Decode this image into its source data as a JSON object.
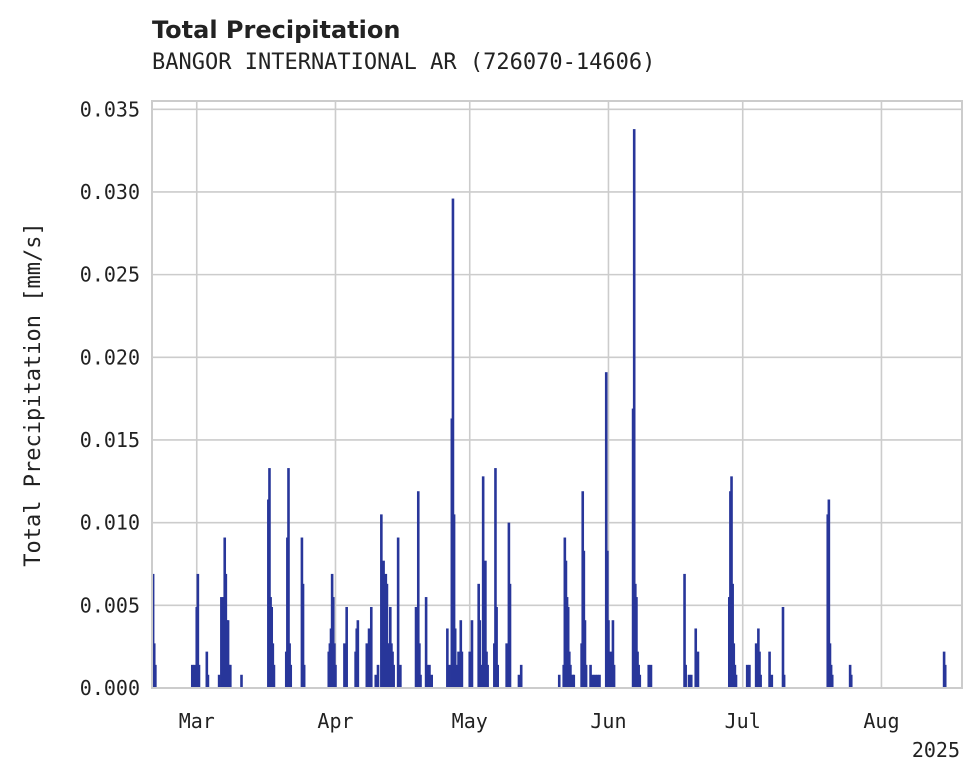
{
  "title": "Total Precipitation",
  "subtitle": "BANGOR INTERNATIONAL AR (726070-14606)",
  "chart_data": {
    "type": "bar",
    "title": "Total Precipitation",
    "subtitle": "BANGOR INTERNATIONAL AR (726070-14606)",
    "ylabel": "Total Precipitation [mm/s]",
    "xlabel": "",
    "year_label": "2025",
    "ylim": [
      0,
      0.0355
    ],
    "xlim": [
      "2025-02-19",
      "2025-08-19"
    ],
    "y_ticks": [
      "0.000",
      "0.005",
      "0.010",
      "0.015",
      "0.020",
      "0.025",
      "0.030",
      "0.035"
    ],
    "x_ticks": [
      {
        "label": "Mar",
        "date": "2025-03-01"
      },
      {
        "label": "Apr",
        "date": "2025-04-01"
      },
      {
        "label": "May",
        "date": "2025-05-01"
      },
      {
        "label": "Jun",
        "date": "2025-06-01"
      },
      {
        "label": "Jul",
        "date": "2025-07-01"
      },
      {
        "label": "Aug",
        "date": "2025-08-01"
      }
    ],
    "grid": true,
    "color": "#28369a",
    "x": [
      "2025-02-19T06:00",
      "2025-02-19T12:00",
      "2025-02-19T18:00",
      "2025-02-28T00:00",
      "2025-02-28T12:00",
      "2025-03-01T00:00",
      "2025-03-01T06:00",
      "2025-03-01T12:00",
      "2025-03-03T06:00",
      "2025-03-03T12:00",
      "2025-03-06T00:00",
      "2025-03-06T12:00",
      "2025-03-07T00:00",
      "2025-03-07T06:00",
      "2025-03-07T12:00",
      "2025-03-07T18:00",
      "2025-03-08T00:00",
      "2025-03-08T06:00",
      "2025-03-08T12:00",
      "2025-03-11T00:00",
      "2025-03-17T00:00",
      "2025-03-17T06:00",
      "2025-03-17T12:00",
      "2025-03-17T18:00",
      "2025-03-18T00:00",
      "2025-03-18T06:00",
      "2025-03-21T00:00",
      "2025-03-21T06:00",
      "2025-03-21T12:00",
      "2025-03-21T18:00",
      "2025-03-22T00:00",
      "2025-03-24T12:00",
      "2025-03-24T18:00",
      "2025-03-25T00:00",
      "2025-03-30T12:00",
      "2025-03-30T18:00",
      "2025-03-31T00:00",
      "2025-03-31T06:00",
      "2025-03-31T12:00",
      "2025-03-31T18:00",
      "2025-04-01T00:00",
      "2025-04-03T00:00",
      "2025-04-03T12:00",
      "2025-04-05T12:00",
      "2025-04-05T18:00",
      "2025-04-06T00:00",
      "2025-04-08T00:00",
      "2025-04-08T12:00",
      "2025-04-09T00:00",
      "2025-04-10T00:00",
      "2025-04-10T12:00",
      "2025-04-11T06:00",
      "2025-04-11T12:00",
      "2025-04-11T18:00",
      "2025-04-12T00:00",
      "2025-04-12T06:00",
      "2025-04-12T12:00",
      "2025-04-12T18:00",
      "2025-04-13T00:00",
      "2025-04-13T06:00",
      "2025-04-13T12:00",
      "2025-04-13T18:00",
      "2025-04-14T00:00",
      "2025-04-15T00:00",
      "2025-04-15T12:00",
      "2025-04-19T00:00",
      "2025-04-19T06:00",
      "2025-04-19T12:00",
      "2025-04-19T18:00",
      "2025-04-20T00:00",
      "2025-04-21T06:00",
      "2025-04-21T12:00",
      "2025-04-21T18:00",
      "2025-04-22T00:00",
      "2025-04-22T12:00",
      "2025-04-26T00:00",
      "2025-04-26T12:00",
      "2025-04-27T00:00",
      "2025-04-27T06:00",
      "2025-04-27T12:00",
      "2025-04-27T18:00",
      "2025-04-28T00:00",
      "2025-04-28T12:00",
      "2025-04-29T00:00",
      "2025-04-29T06:00",
      "2025-05-01T00:00",
      "2025-05-01T12:00",
      "2025-05-03T00:00",
      "2025-05-03T06:00",
      "2025-05-03T12:00",
      "2025-05-04T00:00",
      "2025-05-04T06:00",
      "2025-05-04T12:00",
      "2025-05-04T18:00",
      "2025-05-05T00:00",
      "2025-05-06T12:00",
      "2025-05-06T18:00",
      "2025-05-07T00:00",
      "2025-05-07T06:00",
      "2025-05-09T06:00",
      "2025-05-09T12:00",
      "2025-05-09T18:00",
      "2025-05-10T00:00",
      "2025-05-12T00:00",
      "2025-05-12T12:00",
      "2025-05-21T00:00",
      "2025-05-22T00:00",
      "2025-05-22T06:00",
      "2025-05-22T12:00",
      "2025-05-22T18:00",
      "2025-05-23T00:00",
      "2025-05-23T06:00",
      "2025-05-23T12:00",
      "2025-05-24T00:00",
      "2025-05-24T06:00",
      "2025-05-26T00:00",
      "2025-05-26T06:00",
      "2025-05-26T12:00",
      "2025-05-26T18:00",
      "2025-05-27T00:00",
      "2025-05-28T00:00",
      "2025-05-28T12:00",
      "2025-05-29T00:00",
      "2025-05-29T12:00",
      "2025-05-30T00:00",
      "2025-05-31T12:00",
      "2025-05-31T18:00",
      "2025-06-01T00:00",
      "2025-06-01T06:00",
      "2025-06-01T12:00",
      "2025-06-02T00:00",
      "2025-06-02T06:00",
      "2025-06-06T12:00",
      "2025-06-06T18:00",
      "2025-06-07T00:00",
      "2025-06-07T06:00",
      "2025-06-07T12:00",
      "2025-06-07T18:00",
      "2025-06-08T00:00",
      "2025-06-10T00:00",
      "2025-06-10T12:00",
      "2025-06-18T00:00",
      "2025-06-18T06:00",
      "2025-06-19T00:00",
      "2025-06-19T12:00",
      "2025-06-20T12:00",
      "2025-06-20T18:00",
      "2025-06-21T00:00",
      "2025-06-28T00:00",
      "2025-06-28T06:00",
      "2025-06-28T12:00",
      "2025-06-28T18:00",
      "2025-06-29T00:00",
      "2025-06-29T06:00",
      "2025-06-29T12:00",
      "2025-07-02T00:00",
      "2025-07-02T12:00",
      "2025-07-04T00:00",
      "2025-07-04T06:00",
      "2025-07-04T12:00",
      "2025-07-04T18:00",
      "2025-07-05T00:00",
      "2025-07-07T00:00",
      "2025-07-07T12:00",
      "2025-07-10T00:00",
      "2025-07-10T06:00",
      "2025-07-20T00:00",
      "2025-07-20T06:00",
      "2025-07-20T12:00",
      "2025-07-20T18:00",
      "2025-07-21T00:00",
      "2025-07-25T00:00",
      "2025-07-25T06:00",
      "2025-08-15T00:00",
      "2025-08-15T06:00"
    ],
    "values": [
      0.0069,
      0.0027,
      0.0014,
      0.0014,
      0.0014,
      0.0049,
      0.0069,
      0.0014,
      0.0022,
      0.0008,
      0.0008,
      0.0055,
      0.0055,
      0.0091,
      0.0069,
      0.0041,
      0.0041,
      0.0014,
      0.0014,
      0.0008,
      0.0114,
      0.0133,
      0.0055,
      0.0049,
      0.0027,
      0.0014,
      0.0022,
      0.0091,
      0.0133,
      0.0027,
      0.0014,
      0.0091,
      0.0063,
      0.0014,
      0.0022,
      0.0027,
      0.0036,
      0.0069,
      0.0055,
      0.0027,
      0.0014,
      0.0027,
      0.0049,
      0.0022,
      0.0036,
      0.0041,
      0.0027,
      0.0036,
      0.0049,
      0.0008,
      0.0014,
      0.0105,
      0.0027,
      0.0077,
      0.0027,
      0.0069,
      0.0063,
      0.0027,
      0.0027,
      0.0049,
      0.0027,
      0.0022,
      0.0014,
      0.0091,
      0.0014,
      0.0049,
      0.0049,
      0.0119,
      0.0027,
      0.0008,
      0.0055,
      0.0014,
      0.0008,
      0.0014,
      0.0008,
      0.0036,
      0.0014,
      0.0163,
      0.0296,
      0.0105,
      0.0036,
      0.0014,
      0.0022,
      0.0041,
      0.0022,
      0.0022,
      0.0041,
      0.0063,
      0.0041,
      0.0014,
      0.0128,
      0.0049,
      0.0077,
      0.0022,
      0.0014,
      0.0027,
      0.0133,
      0.0049,
      0.0014,
      0.0027,
      0.0014,
      0.01,
      0.0063,
      0.0008,
      0.0014,
      0.0008,
      0.0014,
      0.0091,
      0.0077,
      0.0055,
      0.0049,
      0.0022,
      0.0014,
      0.0008,
      0.0008,
      0.0027,
      0.0119,
      0.0083,
      0.0041,
      0.0014,
      0.0014,
      0.0008,
      0.0008,
      0.0008,
      0.0008,
      0.0191,
      0.0083,
      0.0041,
      0.0014,
      0.0022,
      0.0041,
      0.0014,
      0.0169,
      0.0338,
      0.0063,
      0.0055,
      0.0022,
      0.0014,
      0.0008,
      0.0014,
      0.0014,
      0.0069,
      0.0014,
      0.0008,
      0.0008,
      0.0036,
      0.0014,
      0.0022,
      0.0055,
      0.0119,
      0.0128,
      0.0063,
      0.0027,
      0.0014,
      0.0008,
      0.0014,
      0.0014,
      0.0027,
      0.0014,
      0.0036,
      0.0022,
      0.0008,
      0.0022,
      0.0008,
      0.0049,
      0.0008,
      0.0105,
      0.0114,
      0.0027,
      0.0014,
      0.0008,
      0.0014,
      0.0008,
      0.0022,
      0.0014
    ]
  }
}
